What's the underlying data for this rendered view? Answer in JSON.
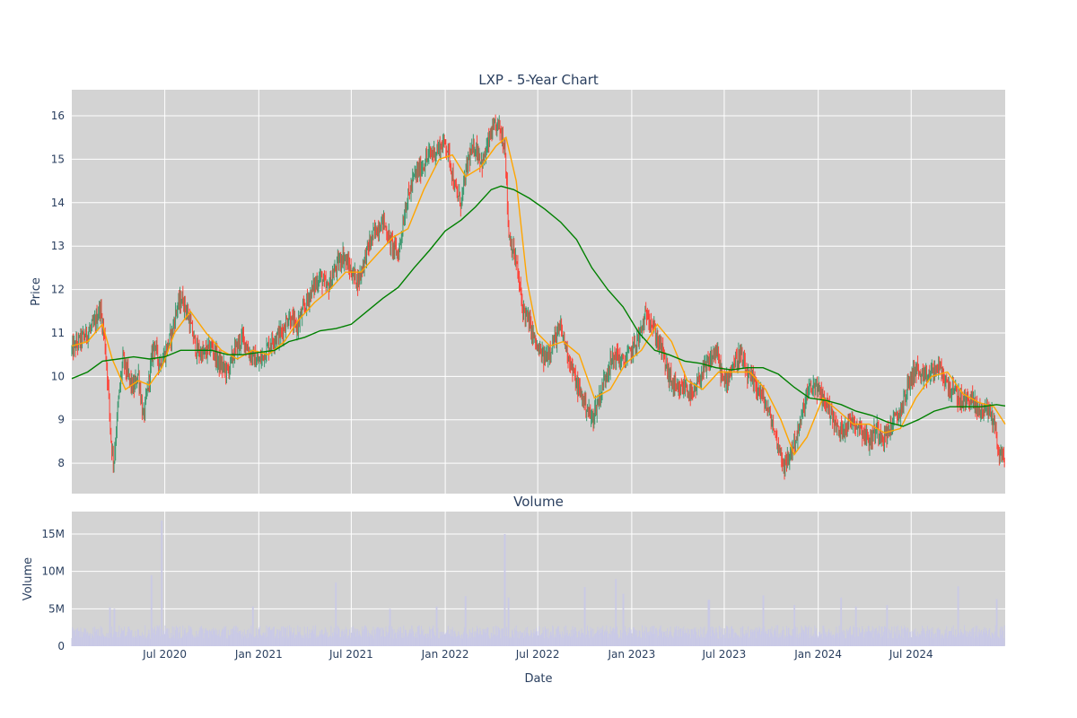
{
  "chart_data": {
    "type": "candlestick",
    "title": "LXP - 5-Year Chart",
    "ylabel": "Price",
    "ylim": [
      7.3,
      16.6
    ],
    "yticks": [
      8,
      9,
      10,
      11,
      12,
      13,
      14,
      15,
      16
    ],
    "ytick_labels": [
      "8",
      "9",
      "10",
      "11",
      "12",
      "13",
      "14",
      "15",
      "16"
    ],
    "xlabel": "Date",
    "xlim": [
      "2020-01-01",
      "2025-01-01"
    ],
    "xticks": [
      "2020-07-01",
      "2021-01-01",
      "2021-07-01",
      "2022-01-01",
      "2022-07-01",
      "2023-01-01",
      "2023-07-01",
      "2024-01-01",
      "2024-07-01"
    ],
    "xtick_labels": [
      "Jul 2020",
      "Jan 2021",
      "Jul 2021",
      "Jan 2022",
      "Jul 2022",
      "Jan 2023",
      "Jul 2023",
      "Jan 2024",
      "Jul 2024"
    ],
    "grid": true,
    "colors": {
      "background": "#d3d3d3",
      "grid": "#ffffff",
      "increasing": "#3d9970",
      "decreasing": "#ff4136",
      "ma_short": "#ffa500",
      "ma_long": "#008000",
      "volume": "#c9c9e6",
      "text": "#2a3f5f"
    },
    "price_path": [
      [
        "2020-01-01",
        10.6
      ],
      [
        "2020-01-15",
        10.8
      ],
      [
        "2020-02-01",
        11.0
      ],
      [
        "2020-02-15",
        11.2
      ],
      [
        "2020-02-25",
        11.6
      ],
      [
        "2020-03-05",
        10.9
      ],
      [
        "2020-03-12",
        9.8
      ],
      [
        "2020-03-18",
        8.5
      ],
      [
        "2020-03-23",
        8.0
      ],
      [
        "2020-04-01",
        9.4
      ],
      [
        "2020-04-10",
        10.4
      ],
      [
        "2020-04-20",
        10.0
      ],
      [
        "2020-05-01",
        9.7
      ],
      [
        "2020-05-10",
        10.1
      ],
      [
        "2020-05-20",
        9.0
      ],
      [
        "2020-06-01",
        10.0
      ],
      [
        "2020-06-10",
        10.8
      ],
      [
        "2020-06-20",
        10.3
      ],
      [
        "2020-07-01",
        10.5
      ],
      [
        "2020-07-15",
        11.0
      ],
      [
        "2020-07-25",
        11.6
      ],
      [
        "2020-08-05",
        11.8
      ],
      [
        "2020-08-20",
        11.2
      ],
      [
        "2020-09-01",
        10.6
      ],
      [
        "2020-09-15",
        10.5
      ],
      [
        "2020-10-01",
        10.7
      ],
      [
        "2020-10-15",
        10.3
      ],
      [
        "2020-11-01",
        10.1
      ],
      [
        "2020-11-15",
        10.6
      ],
      [
        "2020-12-01",
        10.9
      ],
      [
        "2020-12-15",
        10.5
      ],
      [
        "2021-01-01",
        10.3
      ],
      [
        "2021-01-15",
        10.6
      ],
      [
        "2021-02-01",
        10.9
      ],
      [
        "2021-02-15",
        11.0
      ],
      [
        "2021-03-01",
        11.4
      ],
      [
        "2021-03-15",
        11.1
      ],
      [
        "2021-04-01",
        11.6
      ],
      [
        "2021-04-15",
        12.0
      ],
      [
        "2021-05-01",
        12.3
      ],
      [
        "2021-05-15",
        12.0
      ],
      [
        "2021-06-01",
        12.5
      ],
      [
        "2021-06-15",
        12.8
      ],
      [
        "2021-07-01",
        12.4
      ],
      [
        "2021-07-15",
        12.2
      ],
      [
        "2021-08-01",
        12.9
      ],
      [
        "2021-08-15",
        13.3
      ],
      [
        "2021-09-01",
        13.6
      ],
      [
        "2021-09-15",
        13.1
      ],
      [
        "2021-10-01",
        12.8
      ],
      [
        "2021-10-15",
        13.9
      ],
      [
        "2021-11-01",
        14.6
      ],
      [
        "2021-11-15",
        14.8
      ],
      [
        "2021-12-01",
        15.1
      ],
      [
        "2021-12-15",
        15.2
      ],
      [
        "2022-01-01",
        15.4
      ],
      [
        "2022-01-10",
        15.0
      ],
      [
        "2022-01-20",
        14.3
      ],
      [
        "2022-02-01",
        14.0
      ],
      [
        "2022-02-15",
        15.0
      ],
      [
        "2022-03-01",
        15.3
      ],
      [
        "2022-03-15",
        14.9
      ],
      [
        "2022-04-01",
        15.6
      ],
      [
        "2022-04-15",
        15.8
      ],
      [
        "2022-04-28",
        15.3
      ],
      [
        "2022-05-05",
        13.3
      ],
      [
        "2022-05-20",
        12.6
      ],
      [
        "2022-06-01",
        11.6
      ],
      [
        "2022-06-15",
        11.2
      ],
      [
        "2022-07-01",
        10.6
      ],
      [
        "2022-07-15",
        10.4
      ],
      [
        "2022-08-01",
        10.8
      ],
      [
        "2022-08-15",
        11.1
      ],
      [
        "2022-09-01",
        10.4
      ],
      [
        "2022-09-15",
        9.8
      ],
      [
        "2022-10-01",
        9.4
      ],
      [
        "2022-10-15",
        9.0
      ],
      [
        "2022-11-01",
        9.6
      ],
      [
        "2022-11-15",
        10.2
      ],
      [
        "2022-12-01",
        10.5
      ],
      [
        "2022-12-15",
        10.3
      ],
      [
        "2023-01-01",
        10.6
      ],
      [
        "2023-01-15",
        10.9
      ],
      [
        "2023-02-01",
        11.5
      ],
      [
        "2023-02-15",
        11.0
      ],
      [
        "2023-03-01",
        10.6
      ],
      [
        "2023-03-15",
        10.0
      ],
      [
        "2023-04-01",
        9.6
      ],
      [
        "2023-04-15",
        9.8
      ],
      [
        "2023-05-01",
        9.5
      ],
      [
        "2023-05-15",
        10.0
      ],
      [
        "2023-06-01",
        10.3
      ],
      [
        "2023-06-15",
        10.6
      ],
      [
        "2023-07-01",
        9.8
      ],
      [
        "2023-07-15",
        10.2
      ],
      [
        "2023-08-01",
        10.5
      ],
      [
        "2023-08-15",
        10.0
      ],
      [
        "2023-09-01",
        9.8
      ],
      [
        "2023-09-15",
        9.5
      ],
      [
        "2023-10-01",
        9.0
      ],
      [
        "2023-10-15",
        8.4
      ],
      [
        "2023-10-28",
        7.9
      ],
      [
        "2023-11-10",
        8.3
      ],
      [
        "2023-11-25",
        8.8
      ],
      [
        "2023-12-10",
        9.6
      ],
      [
        "2023-12-25",
        9.8
      ],
      [
        "2024-01-10",
        9.5
      ],
      [
        "2024-01-25",
        9.2
      ],
      [
        "2024-02-10",
        8.7
      ],
      [
        "2024-02-25",
        8.9
      ],
      [
        "2024-03-10",
        9.0
      ],
      [
        "2024-03-25",
        8.8
      ],
      [
        "2024-04-10",
        8.5
      ],
      [
        "2024-04-25",
        8.8
      ],
      [
        "2024-05-10",
        8.6
      ],
      [
        "2024-05-25",
        8.9
      ],
      [
        "2024-06-10",
        9.2
      ],
      [
        "2024-06-25",
        9.8
      ],
      [
        "2024-07-10",
        10.2
      ],
      [
        "2024-07-25",
        9.9
      ],
      [
        "2024-08-10",
        10.1
      ],
      [
        "2024-08-25",
        10.2
      ],
      [
        "2024-09-10",
        9.8
      ],
      [
        "2024-09-25",
        9.6
      ],
      [
        "2024-10-10",
        9.4
      ],
      [
        "2024-10-25",
        9.5
      ],
      [
        "2024-11-10",
        9.2
      ],
      [
        "2024-11-25",
        9.3
      ],
      [
        "2024-12-10",
        9.0
      ],
      [
        "2024-12-20",
        8.2
      ],
      [
        "2025-01-01",
        8.1
      ]
    ],
    "series": [
      {
        "name": "",
        "type": "line",
        "color": "#ffa500",
        "points": [
          [
            "2020-01-01",
            10.7
          ],
          [
            "2020-02-01",
            10.8
          ],
          [
            "2020-03-01",
            11.2
          ],
          [
            "2020-03-20",
            10.4
          ],
          [
            "2020-04-15",
            9.7
          ],
          [
            "2020-05-10",
            9.9
          ],
          [
            "2020-06-01",
            9.8
          ],
          [
            "2020-06-25",
            10.2
          ],
          [
            "2020-07-20",
            11.0
          ],
          [
            "2020-08-20",
            11.5
          ],
          [
            "2020-09-20",
            11.0
          ],
          [
            "2020-10-20",
            10.6
          ],
          [
            "2020-11-20",
            10.4
          ],
          [
            "2020-12-20",
            10.6
          ],
          [
            "2021-01-20",
            10.5
          ],
          [
            "2021-02-20",
            10.8
          ],
          [
            "2021-03-20",
            11.3
          ],
          [
            "2021-04-20",
            11.7
          ],
          [
            "2021-05-20",
            12.0
          ],
          [
            "2021-06-20",
            12.4
          ],
          [
            "2021-07-20",
            12.4
          ],
          [
            "2021-08-20",
            12.8
          ],
          [
            "2021-09-20",
            13.2
          ],
          [
            "2021-10-20",
            13.4
          ],
          [
            "2021-11-20",
            14.3
          ],
          [
            "2021-12-20",
            15.0
          ],
          [
            "2022-01-15",
            15.1
          ],
          [
            "2022-02-10",
            14.6
          ],
          [
            "2022-03-10",
            14.8
          ],
          [
            "2022-04-10",
            15.3
          ],
          [
            "2022-04-30",
            15.5
          ],
          [
            "2022-05-20",
            14.5
          ],
          [
            "2022-06-10",
            12.2
          ],
          [
            "2022-06-30",
            11.0
          ],
          [
            "2022-07-25",
            10.7
          ],
          [
            "2022-08-20",
            10.8
          ],
          [
            "2022-09-20",
            10.5
          ],
          [
            "2022-10-20",
            9.5
          ],
          [
            "2022-11-20",
            9.7
          ],
          [
            "2022-12-20",
            10.3
          ],
          [
            "2023-01-20",
            10.6
          ],
          [
            "2023-02-20",
            11.2
          ],
          [
            "2023-03-20",
            10.8
          ],
          [
            "2023-04-20",
            9.9
          ],
          [
            "2023-05-20",
            9.7
          ],
          [
            "2023-06-20",
            10.1
          ],
          [
            "2023-07-20",
            10.1
          ],
          [
            "2023-08-20",
            10.1
          ],
          [
            "2023-09-20",
            9.7
          ],
          [
            "2023-10-20",
            9.0
          ],
          [
            "2023-11-15",
            8.2
          ],
          [
            "2023-12-10",
            8.6
          ],
          [
            "2024-01-10",
            9.5
          ],
          [
            "2024-02-10",
            9.2
          ],
          [
            "2024-03-10",
            8.9
          ],
          [
            "2024-04-10",
            8.9
          ],
          [
            "2024-05-10",
            8.7
          ],
          [
            "2024-06-10",
            8.8
          ],
          [
            "2024-07-10",
            9.5
          ],
          [
            "2024-08-10",
            10.0
          ],
          [
            "2024-09-10",
            10.1
          ],
          [
            "2024-10-10",
            9.6
          ],
          [
            "2024-11-10",
            9.4
          ],
          [
            "2024-12-10",
            9.3
          ],
          [
            "2025-01-01",
            8.9
          ]
        ]
      },
      {
        "name": "",
        "type": "line",
        "color": "#008000",
        "points": [
          [
            "2020-01-01",
            9.95
          ],
          [
            "2020-02-01",
            10.1
          ],
          [
            "2020-03-01",
            10.35
          ],
          [
            "2020-04-01",
            10.4
          ],
          [
            "2020-05-01",
            10.45
          ],
          [
            "2020-06-01",
            10.4
          ],
          [
            "2020-07-01",
            10.45
          ],
          [
            "2020-08-01",
            10.6
          ],
          [
            "2020-09-01",
            10.6
          ],
          [
            "2020-10-01",
            10.6
          ],
          [
            "2020-11-01",
            10.5
          ],
          [
            "2020-12-01",
            10.5
          ],
          [
            "2021-01-01",
            10.55
          ],
          [
            "2021-02-01",
            10.6
          ],
          [
            "2021-03-01",
            10.8
          ],
          [
            "2021-04-01",
            10.9
          ],
          [
            "2021-05-01",
            11.05
          ],
          [
            "2021-06-01",
            11.1
          ],
          [
            "2021-07-01",
            11.2
          ],
          [
            "2021-08-01",
            11.5
          ],
          [
            "2021-09-01",
            11.8
          ],
          [
            "2021-10-01",
            12.05
          ],
          [
            "2021-11-01",
            12.5
          ],
          [
            "2021-12-01",
            12.9
          ],
          [
            "2022-01-01",
            13.35
          ],
          [
            "2022-02-01",
            13.6
          ],
          [
            "2022-03-01",
            13.9
          ],
          [
            "2022-04-01",
            14.3
          ],
          [
            "2022-04-20",
            14.38
          ],
          [
            "2022-05-15",
            14.3
          ],
          [
            "2022-06-15",
            14.1
          ],
          [
            "2022-07-15",
            13.85
          ],
          [
            "2022-08-15",
            13.55
          ],
          [
            "2022-09-15",
            13.15
          ],
          [
            "2022-10-15",
            12.5
          ],
          [
            "2022-11-15",
            12.0
          ],
          [
            "2022-12-15",
            11.6
          ],
          [
            "2023-01-15",
            11.0
          ],
          [
            "2023-02-15",
            10.6
          ],
          [
            "2023-03-15",
            10.5
          ],
          [
            "2023-04-15",
            10.35
          ],
          [
            "2023-05-15",
            10.3
          ],
          [
            "2023-06-15",
            10.2
          ],
          [
            "2023-07-15",
            10.15
          ],
          [
            "2023-08-15",
            10.2
          ],
          [
            "2023-09-15",
            10.2
          ],
          [
            "2023-10-15",
            10.05
          ],
          [
            "2023-11-15",
            9.75
          ],
          [
            "2023-12-15",
            9.5
          ],
          [
            "2024-01-15",
            9.45
          ],
          [
            "2024-02-15",
            9.35
          ],
          [
            "2024-03-15",
            9.2
          ],
          [
            "2024-04-15",
            9.1
          ],
          [
            "2024-05-15",
            8.95
          ],
          [
            "2024-06-15",
            8.85
          ],
          [
            "2024-07-15",
            9.0
          ],
          [
            "2024-08-15",
            9.2
          ],
          [
            "2024-09-15",
            9.3
          ],
          [
            "2024-10-15",
            9.3
          ],
          [
            "2024-11-15",
            9.3
          ],
          [
            "2024-12-15",
            9.35
          ],
          [
            "2025-01-01",
            9.32
          ]
        ]
      }
    ],
    "volume": {
      "title": "Volume",
      "ylabel": "Volume",
      "ylim": [
        0,
        18000000
      ],
      "yticks": [
        0,
        5000000,
        10000000,
        15000000
      ],
      "ytick_labels": [
        "0",
        "5M",
        "10M",
        "15M"
      ],
      "baseline": 2000000,
      "spikes": [
        [
          "2020-03-15",
          5200000
        ],
        [
          "2020-03-25",
          5000000
        ],
        [
          "2020-06-05",
          9500000
        ],
        [
          "2020-06-25",
          16800000
        ],
        [
          "2020-12-20",
          5300000
        ],
        [
          "2021-06-01",
          8500000
        ],
        [
          "2021-09-15",
          5000000
        ],
        [
          "2021-12-15",
          5300000
        ],
        [
          "2022-02-10",
          6700000
        ],
        [
          "2022-04-28",
          15000000
        ],
        [
          "2022-05-05",
          6500000
        ],
        [
          "2022-10-01",
          7900000
        ],
        [
          "2022-12-01",
          9000000
        ],
        [
          "2022-12-15",
          7000000
        ],
        [
          "2023-06-01",
          6200000
        ],
        [
          "2023-09-15",
          6800000
        ],
        [
          "2023-11-15",
          5500000
        ],
        [
          "2024-02-15",
          6500000
        ],
        [
          "2024-03-15",
          5300000
        ],
        [
          "2024-05-15",
          5500000
        ],
        [
          "2024-10-01",
          8000000
        ],
        [
          "2024-12-15",
          6300000
        ]
      ]
    }
  }
}
